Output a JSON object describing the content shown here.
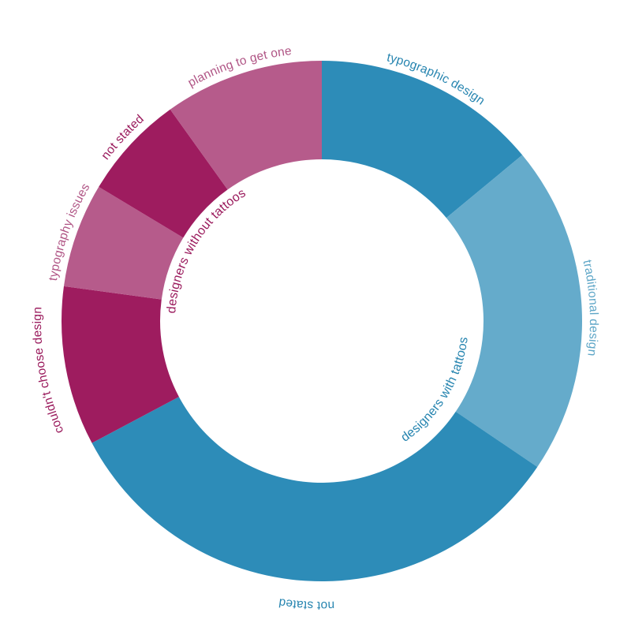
{
  "chart_data": {
    "type": "donut",
    "segments": [
      {
        "label": "typographic design",
        "value": 41,
        "color": "#2d8cb8",
        "label_color": "#2785b0",
        "group": "designers with tattoos"
      },
      {
        "label": "traditional design",
        "value": 60,
        "color": "#65abcb",
        "label_color": "#5ea6c7",
        "group": "designers with tattoos"
      },
      {
        "label": "not stated",
        "value": 96,
        "color": "#2d8cb8",
        "label_color": "#2785b0",
        "group": "designers with tattoos"
      },
      {
        "label": "couldn't choose design",
        "value": 29,
        "color": "#9e1c5f",
        "label_color": "#9a1a5c",
        "group": "designers without tattoos"
      },
      {
        "label": "typography issues",
        "value": 19,
        "color": "#b65b8b",
        "label_color": "#b05585",
        "group": "designers without tattoos"
      },
      {
        "label": "not stated",
        "value": 19,
        "color": "#9e1c5f",
        "label_color": "#9a1a5c",
        "group": "designers without tattoos"
      },
      {
        "label": "planning to get one",
        "value": 29,
        "color": "#b65b8b",
        "label_color": "#b05585",
        "group": "designers without tattoos"
      }
    ],
    "groups": [
      {
        "label": "designers with tattoos",
        "color": "#2785b0"
      },
      {
        "label": "designers without tattoos",
        "color": "#9a1a5c"
      }
    ]
  }
}
